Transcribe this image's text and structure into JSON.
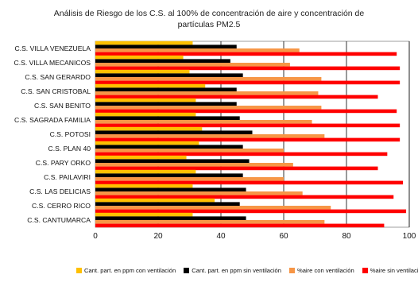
{
  "chart_data": {
    "type": "bar",
    "orientation": "horizontal",
    "title_lines": [
      "Análisis de Riesgo de los C.S. al 100% de concentración de aire y concentración de",
      "partículas PM2.5"
    ],
    "categories": [
      "C.S. VILLA VENEZUELA",
      "C.S. VILLA MECANICOS",
      "C.S. SAN GERARDO",
      "C.S. SAN CRISTOBAL",
      "C.S. SAN BENITO",
      "C.S. SAGRADA FAMILIA",
      "C.S. POTOSI",
      "C.S. PLAN 40",
      "C.S. PARY ORKO",
      "C.S. PAILAVIRI",
      "C.S. LAS DELICIAS",
      "C.S. CERRO  RICO",
      "C.S. CANTUMARCA"
    ],
    "series": [
      {
        "name": "Cant. part. en ppm con ventilación",
        "color": "#FFC000",
        "values": [
          31,
          28,
          30,
          35,
          32,
          32,
          34,
          33,
          29,
          32,
          31,
          38,
          31
        ]
      },
      {
        "name": "Cant. part. en ppm sin ventilación",
        "color": "#000000",
        "values": [
          45,
          43,
          47,
          45,
          45,
          46,
          50,
          47,
          49,
          47,
          48,
          46,
          48
        ]
      },
      {
        "name": "%aire con ventilación",
        "color": "#F79646",
        "values": [
          65,
          62,
          72,
          71,
          72,
          69,
          73,
          60,
          63,
          60,
          66,
          75,
          73
        ]
      },
      {
        "name": "%aire sin ventilación",
        "color": "#FF0000",
        "values": [
          96,
          97,
          97,
          90,
          96,
          97,
          97,
          93,
          90,
          98,
          95,
          99,
          92
        ]
      }
    ],
    "xlim": [
      0,
      100
    ],
    "x_ticks": [
      "0",
      "20",
      "40",
      "60",
      "80",
      "100"
    ],
    "grid": "vertical major gridlines",
    "legend_position": "bottom"
  }
}
